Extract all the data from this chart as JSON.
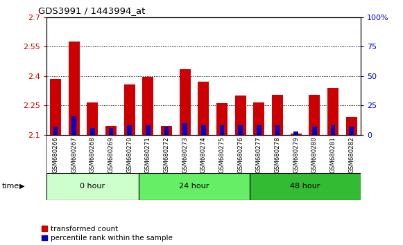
{
  "title": "GDS3991 / 1443994_at",
  "samples": [
    "GSM680266",
    "GSM680267",
    "GSM680268",
    "GSM680269",
    "GSM680270",
    "GSM680271",
    "GSM680272",
    "GSM680273",
    "GSM680274",
    "GSM680275",
    "GSM680276",
    "GSM680277",
    "GSM680278",
    "GSM680279",
    "GSM680280",
    "GSM680281",
    "GSM680282"
  ],
  "transformed_count": [
    2.385,
    2.575,
    2.265,
    2.145,
    2.355,
    2.395,
    2.145,
    2.435,
    2.37,
    2.26,
    2.3,
    2.265,
    2.305,
    2.105,
    2.305,
    2.34,
    2.19
  ],
  "percentile_rank": [
    7,
    16,
    6,
    6,
    8,
    8,
    7,
    10,
    8,
    8,
    8,
    8,
    8,
    3,
    7,
    8,
    7
  ],
  "groups": [
    {
      "label": "0 hour",
      "start": 0,
      "end": 5,
      "color": "#ccffcc"
    },
    {
      "label": "24 hour",
      "start": 5,
      "end": 11,
      "color": "#66ee66"
    },
    {
      "label": "48 hour",
      "start": 11,
      "end": 17,
      "color": "#33bb33"
    }
  ],
  "ymin": 2.1,
  "ymax": 2.7,
  "yticks": [
    2.1,
    2.25,
    2.4,
    2.55,
    2.7
  ],
  "ytick_labels": [
    "2.1",
    "2.25",
    "2.4",
    "2.55",
    "2.7"
  ],
  "right_yticks": [
    0,
    25,
    50,
    75,
    100
  ],
  "right_ytick_labels": [
    "0",
    "25",
    "50",
    "75",
    "100%"
  ],
  "bar_color_red": "#cc0000",
  "bar_color_blue": "#0000cc",
  "bar_width": 0.6,
  "blue_bar_width": 0.25,
  "plot_bg_color": "#ffffff",
  "tick_area_bg": "#cccccc",
  "left_axis_color": "#cc0000",
  "right_axis_color": "#0000cc",
  "grid_color": "#000000",
  "legend_items": [
    "transformed count",
    "percentile rank within the sample"
  ],
  "time_label": "time"
}
